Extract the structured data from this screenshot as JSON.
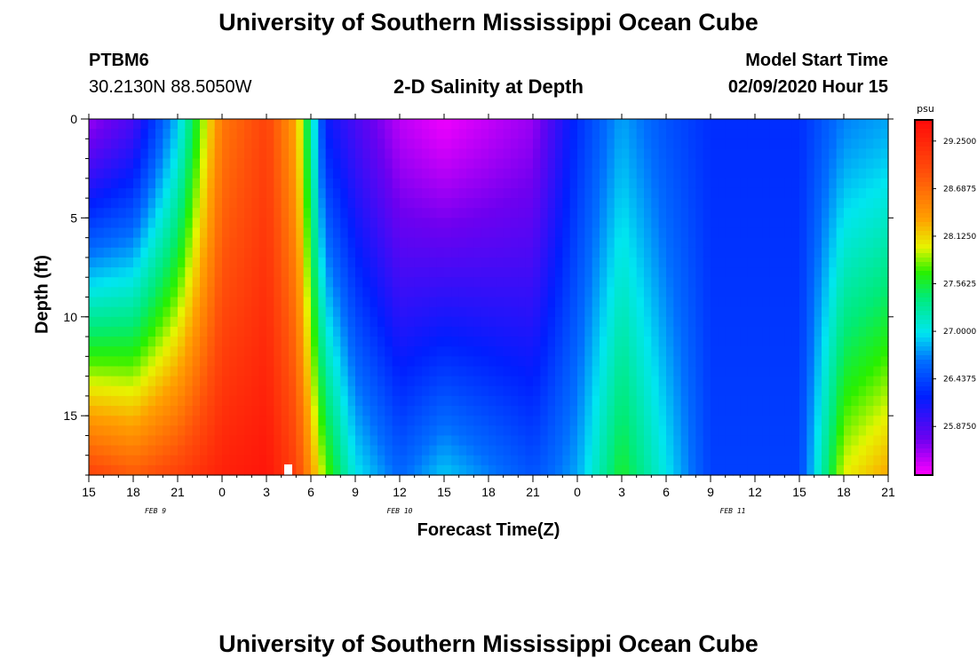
{
  "header": {
    "title_top": "University of Southern Mississippi Ocean Cube",
    "station": "PTBM6",
    "coords": "30.2130N 88.5050W",
    "chart_title": "2-D Salinity at Depth",
    "model_label": "Model Start Time",
    "model_time": "02/09/2020 Hour 15",
    "title_bottom": "University of Southern Mississippi Ocean Cube"
  },
  "chart_data": {
    "type": "heatmap",
    "title": "2-D Salinity at Depth",
    "xlabel": "Forecast Time(Z)",
    "ylabel": "Depth (ft)",
    "x_tick_labels": [
      "15",
      "18",
      "21",
      "0",
      "3",
      "6",
      "9",
      "12",
      "15",
      "18",
      "21",
      "0",
      "3",
      "6",
      "9",
      "12",
      "15",
      "18",
      "21"
    ],
    "date_labels": [
      {
        "text": "FEB 9",
        "hour_index": 4.5
      },
      {
        "text": "FEB 10",
        "hour_index": 21
      },
      {
        "text": "FEB 11",
        "hour_index": 43.5
      }
    ],
    "y_ticks": [
      0,
      5,
      10,
      15
    ],
    "ylim": [
      0,
      18
    ],
    "x_hours_range": [
      0,
      54
    ],
    "colorbar": {
      "unit": "psu",
      "vmin": 25.3,
      "vmax": 29.5,
      "labels": [
        "29.2500",
        "28.6875",
        "28.1250",
        "27.5625",
        "27.0000",
        "26.4375",
        "25.8750"
      ]
    },
    "structure_keyframes": [
      {
        "hour": 0,
        "surface": 25.6,
        "bottom": 29.0
      },
      {
        "hour": 3,
        "surface": 25.9,
        "bottom": 28.8
      },
      {
        "hour": 6,
        "surface": 26.9,
        "bottom": 29.0
      },
      {
        "hour": 9,
        "surface": 28.6,
        "bottom": 29.3
      },
      {
        "hour": 12,
        "surface": 29.0,
        "bottom": 29.4
      },
      {
        "hour": 14,
        "surface": 28.3,
        "bottom": 29.0
      },
      {
        "hour": 16,
        "surface": 26.2,
        "bottom": 27.8
      },
      {
        "hour": 18,
        "surface": 25.9,
        "bottom": 27.0
      },
      {
        "hour": 21,
        "surface": 25.5,
        "bottom": 26.6
      },
      {
        "hour": 24,
        "surface": 25.35,
        "bottom": 26.9
      },
      {
        "hour": 30,
        "surface": 25.6,
        "bottom": 26.5
      },
      {
        "hour": 33,
        "surface": 26.3,
        "bottom": 26.8
      },
      {
        "hour": 36,
        "surface": 26.8,
        "bottom": 27.6
      },
      {
        "hour": 39,
        "surface": 26.5,
        "bottom": 27.0
      },
      {
        "hour": 42,
        "surface": 26.3,
        "bottom": 26.4
      },
      {
        "hour": 48,
        "surface": 26.3,
        "bottom": 26.4
      },
      {
        "hour": 51,
        "surface": 26.7,
        "bottom": 28.0
      },
      {
        "hour": 54,
        "surface": 26.8,
        "bottom": 28.3
      }
    ]
  }
}
